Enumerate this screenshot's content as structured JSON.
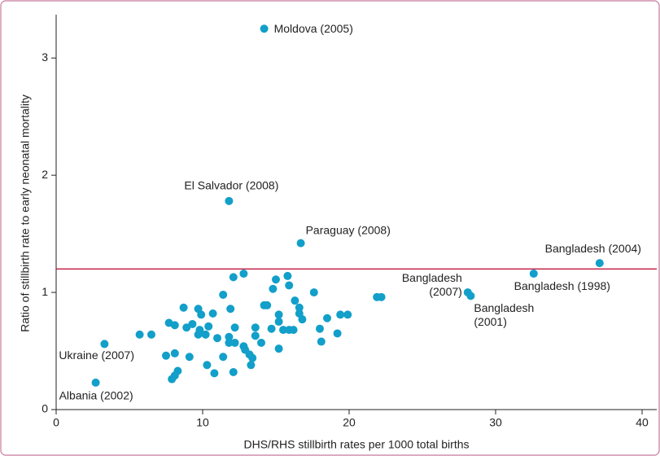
{
  "chart_data": {
    "type": "scatter",
    "x_label": "DHS/RHS stillbirth rates per 1000 total births",
    "y_label": "Ratio of stillbirth rate to early neonatal mortality",
    "xlim": [
      0,
      41
    ],
    "ylim": [
      0,
      3.37
    ],
    "xticks": [
      0,
      10,
      20,
      30,
      40
    ],
    "yticks": [
      0,
      1,
      2,
      3
    ],
    "color": "#129fc9",
    "reference_line": {
      "y": 1.2,
      "color": "#c51642"
    },
    "points": [
      {
        "x": 14.2,
        "y": 3.25,
        "label": [
          "Moldova (2005)"
        ]
      },
      {
        "x": 11.8,
        "y": 1.78,
        "label": [
          "El Salvador (2008)"
        ]
      },
      {
        "x": 16.7,
        "y": 1.42,
        "label": [
          "Paraguay (2008)"
        ]
      },
      {
        "x": 37.1,
        "y": 1.25,
        "label": [
          "Bangladesh (2004)"
        ]
      },
      {
        "x": 32.6,
        "y": 1.16,
        "label": [
          "Bangladesh (1998)"
        ]
      },
      {
        "x": 28.1,
        "y": 1.0,
        "label": [
          "Bangladesh",
          "(2007)"
        ]
      },
      {
        "x": 28.3,
        "y": 0.97,
        "label": [
          "Bangladesh",
          "(2001)"
        ]
      },
      {
        "x": 3.3,
        "y": 0.56,
        "label": [
          "Ukraine (2007)"
        ]
      },
      {
        "x": 2.7,
        "y": 0.23,
        "label": [
          "Albania (2002)"
        ]
      },
      {
        "x": 5.7,
        "y": 0.64
      },
      {
        "x": 6.5,
        "y": 0.64
      },
      {
        "x": 7.7,
        "y": 0.74
      },
      {
        "x": 8.1,
        "y": 0.72
      },
      {
        "x": 8.7,
        "y": 0.87
      },
      {
        "x": 8.9,
        "y": 0.7
      },
      {
        "x": 9.3,
        "y": 0.73
      },
      {
        "x": 9.8,
        "y": 0.68
      },
      {
        "x": 9.7,
        "y": 0.86
      },
      {
        "x": 9.9,
        "y": 0.81
      },
      {
        "x": 10.2,
        "y": 0.64
      },
      {
        "x": 9.7,
        "y": 0.64
      },
      {
        "x": 10.7,
        "y": 0.82
      },
      {
        "x": 10.4,
        "y": 0.71
      },
      {
        "x": 11.4,
        "y": 0.98
      },
      {
        "x": 11.0,
        "y": 0.61
      },
      {
        "x": 12.1,
        "y": 1.13
      },
      {
        "x": 12.8,
        "y": 1.16
      },
      {
        "x": 11.9,
        "y": 0.86
      },
      {
        "x": 11.8,
        "y": 0.62
      },
      {
        "x": 12.2,
        "y": 0.7
      },
      {
        "x": 11.8,
        "y": 0.57
      },
      {
        "x": 12.2,
        "y": 0.57
      },
      {
        "x": 12.8,
        "y": 0.54
      },
      {
        "x": 12.9,
        "y": 0.51
      },
      {
        "x": 13.2,
        "y": 0.47
      },
      {
        "x": 13.4,
        "y": 0.44
      },
      {
        "x": 13.6,
        "y": 0.63
      },
      {
        "x": 13.6,
        "y": 0.7
      },
      {
        "x": 14.0,
        "y": 0.57
      },
      {
        "x": 14.2,
        "y": 0.89
      },
      {
        "x": 14.4,
        "y": 0.89
      },
      {
        "x": 14.7,
        "y": 0.69
      },
      {
        "x": 14.8,
        "y": 1.03
      },
      {
        "x": 15.0,
        "y": 1.11
      },
      {
        "x": 15.2,
        "y": 0.81
      },
      {
        "x": 15.2,
        "y": 0.75
      },
      {
        "x": 15.5,
        "y": 0.68
      },
      {
        "x": 15.8,
        "y": 1.14
      },
      {
        "x": 15.9,
        "y": 1.06
      },
      {
        "x": 15.9,
        "y": 0.68
      },
      {
        "x": 16.2,
        "y": 0.68
      },
      {
        "x": 16.3,
        "y": 0.93
      },
      {
        "x": 16.6,
        "y": 0.87
      },
      {
        "x": 16.6,
        "y": 0.82
      },
      {
        "x": 16.8,
        "y": 0.77
      },
      {
        "x": 17.6,
        "y": 1.0
      },
      {
        "x": 18.0,
        "y": 0.69
      },
      {
        "x": 18.1,
        "y": 0.58
      },
      {
        "x": 18.5,
        "y": 0.78
      },
      {
        "x": 19.2,
        "y": 0.65
      },
      {
        "x": 19.4,
        "y": 0.81
      },
      {
        "x": 19.9,
        "y": 0.81
      },
      {
        "x": 15.2,
        "y": 0.52
      },
      {
        "x": 12.1,
        "y": 0.32
      },
      {
        "x": 10.8,
        "y": 0.31
      },
      {
        "x": 10.3,
        "y": 0.38
      },
      {
        "x": 13.3,
        "y": 0.38
      },
      {
        "x": 11.4,
        "y": 0.45
      },
      {
        "x": 7.5,
        "y": 0.46
      },
      {
        "x": 9.1,
        "y": 0.45
      },
      {
        "x": 8.1,
        "y": 0.29
      },
      {
        "x": 7.9,
        "y": 0.26
      },
      {
        "x": 8.3,
        "y": 0.33
      },
      {
        "x": 8.1,
        "y": 0.48
      },
      {
        "x": 21.9,
        "y": 0.96
      },
      {
        "x": 22.2,
        "y": 0.96
      }
    ]
  }
}
